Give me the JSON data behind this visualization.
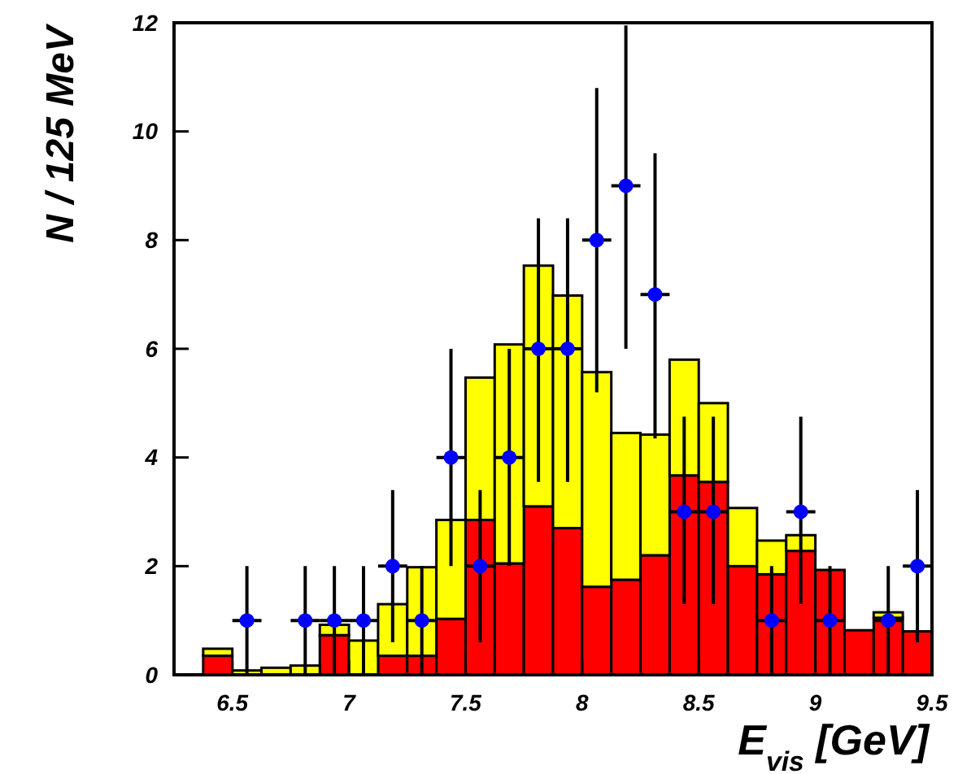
{
  "chart_data": {
    "type": "bar",
    "xlabel": "E$_{vis}$ [GeV]",
    "ylabel": "N / 125 MeV",
    "x": [
      6.4375,
      6.5625,
      6.6875,
      6.8125,
      6.9375,
      7.0625,
      7.1875,
      7.3125,
      7.4375,
      7.5625,
      7.6875,
      7.8125,
      7.9375,
      8.0625,
      8.1875,
      8.3125,
      8.4375,
      8.5625,
      8.6875,
      8.8125,
      8.9375,
      9.0625,
      9.1875,
      9.3125,
      9.4375
    ],
    "stacked": true,
    "series": [
      {
        "color": "#ff0000",
        "values": [
          0.35,
          0,
          0,
          0,
          0.73,
          0,
          0.35,
          0.35,
          1.03,
          2.85,
          2.05,
          3.1,
          2.7,
          1.62,
          1.75,
          2.2,
          3.67,
          3.55,
          2.0,
          1.85,
          2.28,
          1.93,
          0.82,
          1.05,
          0.8
        ]
      },
      {
        "color": "#ffff00",
        "values": [
          0.13,
          0.08,
          0.13,
          0.17,
          0.19,
          0.63,
          0.95,
          1.63,
          1.82,
          2.62,
          4.03,
          4.43,
          4.28,
          3.95,
          2.7,
          2.22,
          2.13,
          1.45,
          1.07,
          0.62,
          0.29,
          0,
          0,
          0.1,
          0
        ]
      },
      {
        "type": "scatter",
        "color": "#0000ff",
        "x": [
          6.5625,
          6.8125,
          6.9375,
          7.0625,
          7.1875,
          7.3125,
          7.4375,
          7.5625,
          7.6875,
          7.8125,
          7.9375,
          8.0625,
          8.1875,
          8.3125,
          8.4375,
          8.5625,
          8.8125,
          8.9375,
          9.0625,
          9.3125,
          9.4375
        ],
        "values": [
          1,
          1,
          1,
          1,
          2,
          1,
          4,
          2,
          4,
          6,
          6,
          8,
          9,
          7,
          3,
          3,
          1,
          3,
          1,
          1,
          2
        ],
        "errors": [
          [
            0,
            2
          ],
          [
            0,
            2
          ],
          [
            0,
            2
          ],
          [
            0,
            2
          ],
          [
            0.6,
            3.4
          ],
          [
            0,
            2
          ],
          [
            2,
            6
          ],
          [
            0.6,
            3.4
          ],
          [
            2,
            6
          ],
          [
            3.55,
            8.4
          ],
          [
            3.55,
            8.4
          ],
          [
            5.2,
            10.8
          ],
          [
            6,
            11.95
          ],
          [
            4.35,
            9.6
          ],
          [
            1.3,
            4.75
          ],
          [
            1.3,
            4.75
          ],
          [
            0,
            2
          ],
          [
            1.3,
            4.75
          ],
          [
            0,
            2
          ],
          [
            0,
            2
          ],
          [
            0.6,
            3.4
          ]
        ],
        "xerrors": [
          0.0625,
          0.0625,
          0.0625,
          0.0625,
          0.0625,
          0.0625,
          0.0625,
          0.0625,
          0.0625,
          0.0625,
          0.0625,
          0.0625,
          0.0625,
          0.0625,
          0.0625,
          0.0625,
          0.0625,
          0.0625,
          0.0625,
          0.0625,
          0.0625
        ]
      }
    ],
    "xlim": [
      6.25,
      9.5
    ],
    "xticks": [
      6.5,
      7,
      7.5,
      8,
      8.5,
      9,
      9.5
    ],
    "ylim": [
      0,
      12
    ],
    "yticks": [
      0,
      2,
      4,
      6,
      8,
      10,
      12
    ],
    "marker": "circle",
    "grid": false
  }
}
